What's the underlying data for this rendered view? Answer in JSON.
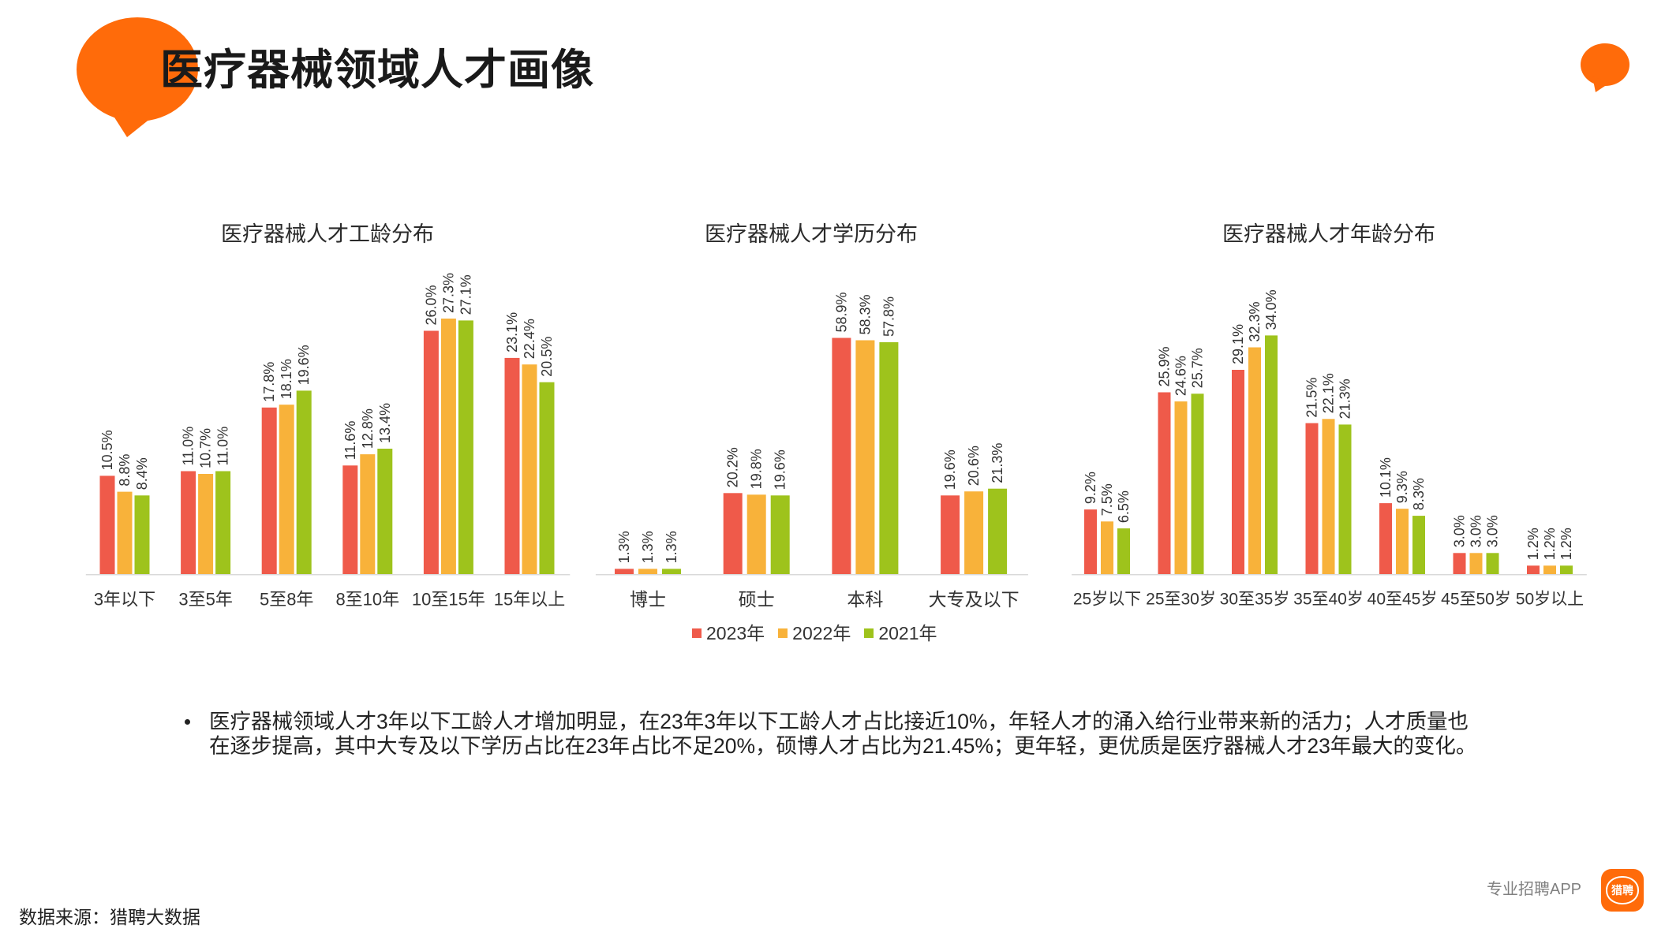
{
  "header": {
    "title": "医疗器械领域人才画像"
  },
  "colors": {
    "accent": "#FF6B0A",
    "axis": "#D9D9D9",
    "text": "#333333"
  },
  "chart_data": [
    {
      "type": "bar",
      "title": "医疗器械人才工龄分布",
      "categories": [
        "3年以下",
        "3至5年",
        "5至8年",
        "8至10年",
        "10至15年",
        "15年以上"
      ],
      "series": [
        {
          "name": "2023年",
          "color": "#EF5A4A",
          "values": [
            10.5,
            11.0,
            17.8,
            11.6,
            26.0,
            23.1
          ]
        },
        {
          "name": "2022年",
          "color": "#F8B23A",
          "values": [
            8.8,
            10.7,
            18.1,
            12.8,
            27.3,
            22.4
          ]
        },
        {
          "name": "2021年",
          "color": "#9EC31C",
          "values": [
            8.4,
            11.0,
            19.6,
            13.4,
            27.1,
            20.5
          ]
        }
      ],
      "value_suffix": "%",
      "ylim": [
        0,
        30
      ],
      "grid": false,
      "legend": "bottom"
    },
    {
      "type": "bar",
      "title": "医疗器械人才学历分布",
      "categories": [
        "博士",
        "硕士",
        "本科",
        "大专及以下"
      ],
      "series": [
        {
          "name": "2023年",
          "color": "#EF5A4A",
          "values": [
            1.3,
            20.2,
            58.9,
            19.6
          ]
        },
        {
          "name": "2022年",
          "color": "#F8B23A",
          "values": [
            1.3,
            19.8,
            58.3,
            20.6
          ]
        },
        {
          "name": "2021年",
          "color": "#9EC31C",
          "values": [
            1.3,
            19.6,
            57.8,
            21.3
          ]
        }
      ],
      "value_suffix": "%",
      "ylim": [
        0,
        70
      ],
      "grid": false,
      "legend": "bottom"
    },
    {
      "type": "bar",
      "title": "医疗器械人才年龄分布",
      "categories": [
        "25岁以下",
        "25至30岁",
        "30至35岁",
        "35至40岁",
        "40至45岁",
        "45至50岁",
        "50岁以上"
      ],
      "series": [
        {
          "name": "2023年",
          "color": "#EF5A4A",
          "values": [
            9.2,
            25.9,
            29.1,
            21.5,
            10.1,
            3.0,
            1.2
          ]
        },
        {
          "name": "2022年",
          "color": "#F8B23A",
          "values": [
            7.5,
            24.6,
            32.3,
            22.1,
            9.3,
            3.0,
            1.2
          ]
        },
        {
          "name": "2021年",
          "color": "#9EC31C",
          "values": [
            6.5,
            25.7,
            34.0,
            21.3,
            8.3,
            3.0,
            1.2
          ]
        }
      ],
      "value_suffix": "%",
      "ylim": [
        0,
        40
      ],
      "grid": false,
      "legend": "bottom"
    }
  ],
  "summary": {
    "lines": [
      "医疗器械领域人才3年以下工龄人才增加明显，在23年3年以下工龄人才占比接近10%，年轻人才的涌入给行业带来新的活力；人才质量也",
      "在逐步提高，其中大专及以下学历占比在23年占比不足20%，硕博人才占比为21.45%；更年轻，更优质是医疗器械人才23年最大的变化。"
    ]
  },
  "footer": {
    "source": "数据来源：猎聘大数据",
    "app_label": "专业招聘APP",
    "logo_text": "猎聘"
  }
}
